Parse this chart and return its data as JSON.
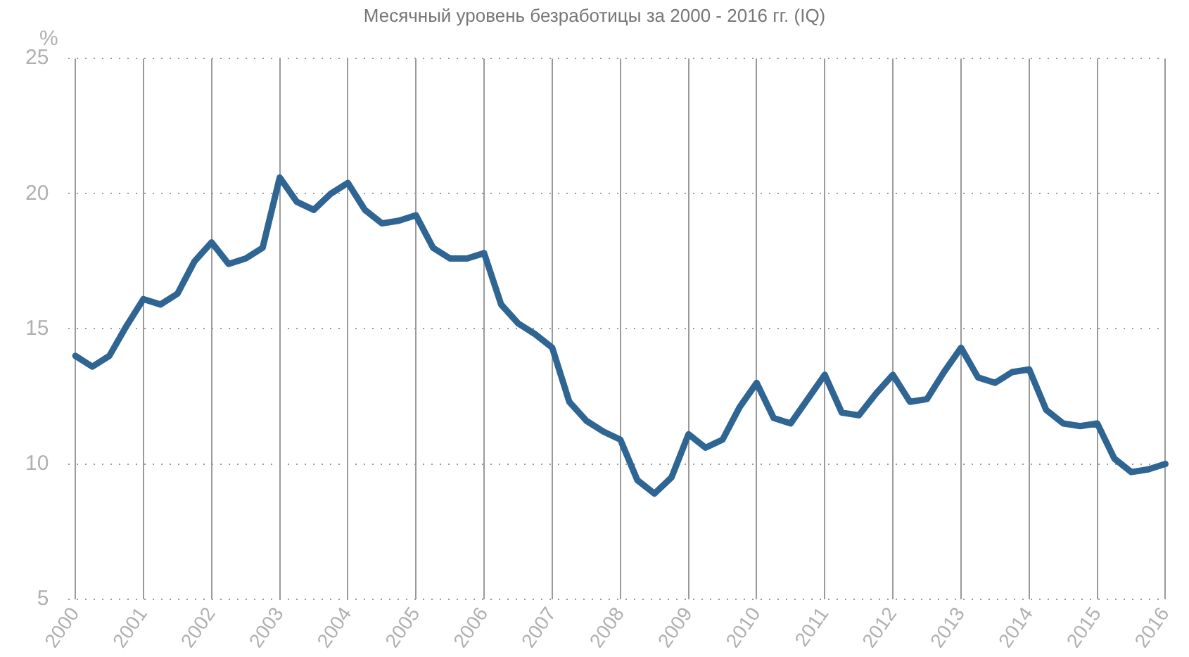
{
  "chart_data": {
    "type": "line",
    "title": "Месячный уровень безработицы за 2000 - 2016 гг. (IQ)",
    "ylabel": "%",
    "x": [
      2000,
      2000.25,
      2000.5,
      2000.75,
      2001,
      2001.25,
      2001.5,
      2001.75,
      2002,
      2002.25,
      2002.5,
      2002.75,
      2003,
      2003.25,
      2003.5,
      2003.75,
      2004,
      2004.25,
      2004.5,
      2004.75,
      2005,
      2005.25,
      2005.5,
      2005.75,
      2006,
      2006.25,
      2006.5,
      2006.75,
      2007,
      2007.25,
      2007.5,
      2007.75,
      2008,
      2008.25,
      2008.5,
      2008.75,
      2009,
      2009.25,
      2009.5,
      2009.75,
      2010,
      2010.25,
      2010.5,
      2010.75,
      2011,
      2011.25,
      2011.5,
      2011.75,
      2012,
      2012.25,
      2012.5,
      2012.75,
      2013,
      2013.25,
      2013.5,
      2013.75,
      2014,
      2014.25,
      2014.5,
      2014.75,
      2015,
      2015.25,
      2015.5,
      2015.75,
      2016
    ],
    "series": [
      {
        "color": "#2f6592",
        "values": [
          14.0,
          13.6,
          14.0,
          15.1,
          16.1,
          15.9,
          16.3,
          17.5,
          18.2,
          17.4,
          17.6,
          18.0,
          20.6,
          19.7,
          19.4,
          20.0,
          20.4,
          19.4,
          18.9,
          19.0,
          19.2,
          18.0,
          17.6,
          17.6,
          17.8,
          15.9,
          15.2,
          14.8,
          14.3,
          12.3,
          11.6,
          11.2,
          10.9,
          9.4,
          8.9,
          9.5,
          11.1,
          10.6,
          10.9,
          12.1,
          13.0,
          11.7,
          11.5,
          12.4,
          13.3,
          11.9,
          11.8,
          12.6,
          13.3,
          12.3,
          12.4,
          13.4,
          14.3,
          13.2,
          13.0,
          13.4,
          13.5,
          12.0,
          11.5,
          11.4,
          11.5,
          10.2,
          9.7,
          9.8,
          10.0
        ]
      }
    ],
    "xlim": [
      1999.9,
      2016
    ],
    "xticks": [
      2000,
      2001,
      2002,
      2003,
      2004,
      2005,
      2006,
      2007,
      2008,
      2009,
      2010,
      2011,
      2012,
      2013,
      2014,
      2015,
      2016
    ],
    "ylim": [
      5,
      25
    ],
    "yticks": [
      5,
      10,
      15,
      20,
      25
    ],
    "grid": true,
    "legend": false,
    "marker": "none",
    "line_style": "solid"
  }
}
